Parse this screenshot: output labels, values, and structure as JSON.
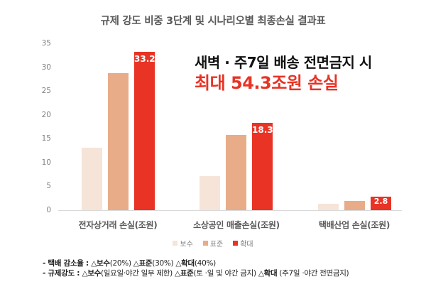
{
  "title": "규제 강도 비중 3단계 및 시나리오별 최종손실 결과표",
  "annotation": {
    "line1": "새벽 · 주7일 배송 전면금지 시",
    "line2": "최대 54.3조원 손실"
  },
  "colors": {
    "보수": "#F6E4D9",
    "표준": "#E8AC88",
    "확대": "#E83325",
    "annotation_highlight": "#E83325"
  },
  "chart_data": {
    "type": "bar",
    "title": "규제 강도 비중 3단계 및 시나리오별 최종손실 결과표",
    "categories": [
      "전자상거래 손실(조원)",
      "소상공인 매출손실(조원)",
      "택배산업 손실(조원)"
    ],
    "series": [
      {
        "name": "보수",
        "values": [
          13.1,
          7.2,
          1.4
        ],
        "color": "#F6E4D9"
      },
      {
        "name": "표준",
        "values": [
          28.8,
          15.8,
          2.0
        ],
        "color": "#E8AC88"
      },
      {
        "name": "확대",
        "values": [
          33.2,
          18.3,
          2.8
        ],
        "color": "#E83325",
        "data_labels": [
          "33.2",
          "18.3",
          "2.8"
        ]
      }
    ],
    "xlabel": "",
    "ylabel": "",
    "ylim": [
      0,
      35
    ],
    "yticks": [
      0,
      5,
      10,
      15,
      20,
      25,
      30,
      35
    ],
    "grid": false,
    "legend_position": "bottom",
    "annotations": [
      "새벽 · 주7일 배송 전면금지 시",
      "최대 54.3조원 손실"
    ]
  },
  "legend": [
    {
      "label": "보수",
      "color": "#F6E4D9"
    },
    {
      "label": "표준",
      "color": "#E8AC88"
    },
    {
      "label": "확대",
      "color": "#E83325"
    }
  ],
  "notes": {
    "line1": {
      "prefix": "- 택배 감소율 : ",
      "items": [
        {
          "tri": "△",
          "label": "보수",
          "detail": "(20%) "
        },
        {
          "tri": "△",
          "label": "표준",
          "detail": "(30%) "
        },
        {
          "tri": "△",
          "label": "확대",
          "detail": "(40%)"
        }
      ]
    },
    "line2": {
      "prefix": "- 규제강도 : ",
      "items": [
        {
          "tri": "△",
          "label": "보수",
          "detail": "(일요일·야간 일부 제한) "
        },
        {
          "tri": "△",
          "label": "표준",
          "detail": "(토 ·일 및 야간 금지) "
        },
        {
          "tri": "△",
          "label": "확대",
          "detail": " (주7일 ·야간 전면금지)"
        }
      ]
    }
  }
}
